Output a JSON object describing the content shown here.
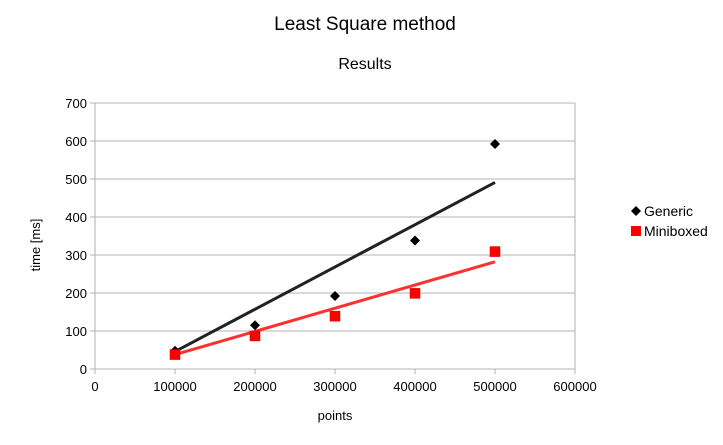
{
  "chart_data": {
    "type": "scatter",
    "title": "Least Square method",
    "subtitle": "Results",
    "xlabel": "points",
    "ylabel": "time [ms]",
    "xlim": [
      0,
      600000
    ],
    "ylim": [
      0,
      700
    ],
    "x_ticks": [
      0,
      100000,
      200000,
      300000,
      400000,
      500000,
      600000
    ],
    "y_ticks": [
      0,
      100,
      200,
      300,
      400,
      500,
      600,
      700
    ],
    "grid": "horizontal",
    "legend_position": "right",
    "series": [
      {
        "name": "Generic",
        "marker": "diamond",
        "color": "#000000",
        "x": [
          100000,
          200000,
          300000,
          400000,
          500000
        ],
        "y": [
          48,
          115,
          192,
          338,
          592
        ],
        "trendline": {
          "type": "linear",
          "x": [
            100000,
            500000
          ],
          "y": [
            46,
            491
          ]
        }
      },
      {
        "name": "Miniboxed",
        "marker": "square",
        "color": "#ff0000",
        "x": [
          100000,
          200000,
          300000,
          400000,
          500000
        ],
        "y": [
          38,
          87,
          139,
          199,
          309
        ],
        "trendline": {
          "type": "linear",
          "x": [
            100000,
            500000
          ],
          "y": [
            38,
            282
          ]
        }
      }
    ],
    "trendline_colors": {
      "Generic": "#222222",
      "Miniboxed": "#ff3030"
    },
    "axis_color": "#b3b3b3",
    "grid_color": "#b3b3b3"
  }
}
